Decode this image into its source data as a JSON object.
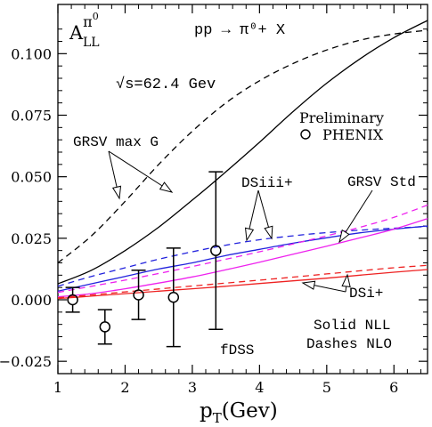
{
  "chart_data": {
    "type": "line",
    "xlabel_main": "p",
    "xlabel_sub": "T",
    "xlabel_rest": "(Gev)",
    "ylabel_main": "A",
    "ylabel_sub": "LL",
    "ylabel_sup": "π",
    "ylabel_sup2": "0",
    "xlim": [
      1,
      6.5
    ],
    "ylim": [
      -0.03,
      0.12
    ],
    "x_ticks": [
      1,
      2,
      3,
      4,
      5,
      6
    ],
    "x_tick_labels": [
      "1",
      "2",
      "3",
      "4",
      "5",
      "6"
    ],
    "y_ticks": [
      -0.025,
      0,
      0.025,
      0.05,
      0.075,
      0.1
    ],
    "y_tick_labels": [
      "−0.025",
      "0.000",
      "0.025",
      "0.050",
      "0.075",
      "0.100"
    ],
    "grid": false,
    "series": [
      {
        "name": "GRSV max G",
        "order": "NLL",
        "color": "#000000",
        "dash": false,
        "x": [
          1,
          1.5,
          2,
          2.5,
          3,
          3.5,
          4,
          4.5,
          5,
          5.5,
          6,
          6.5
        ],
        "y": [
          0.0065,
          0.012,
          0.02,
          0.0295,
          0.0405,
          0.052,
          0.064,
          0.0765,
          0.088,
          0.098,
          0.1065,
          0.1135
        ]
      },
      {
        "name": "GRSV max G",
        "order": "NLO",
        "color": "#000000",
        "dash": true,
        "x": [
          1,
          1.5,
          2,
          2.5,
          3,
          3.5,
          4,
          4.5,
          5,
          5.5,
          6,
          6.5
        ],
        "y": [
          0.015,
          0.026,
          0.04,
          0.055,
          0.0685,
          0.08,
          0.089,
          0.096,
          0.1015,
          0.1055,
          0.108,
          0.1095
        ]
      },
      {
        "name": "DSiii+",
        "order": "NLL",
        "color": "#2222dd",
        "dash": false,
        "x": [
          1,
          1.5,
          2,
          2.5,
          3,
          3.5,
          4,
          4.5,
          5,
          5.5,
          6,
          6.5
        ],
        "y": [
          0.0035,
          0.0065,
          0.0095,
          0.0125,
          0.015,
          0.018,
          0.0205,
          0.023,
          0.0252,
          0.0272,
          0.0287,
          0.03
        ]
      },
      {
        "name": "DSiii+",
        "order": "NLO",
        "color": "#2222dd",
        "dash": true,
        "x": [
          1,
          1.5,
          2,
          2.5,
          3,
          3.5,
          4,
          4.5,
          5,
          5.5,
          6,
          6.5
        ],
        "y": [
          0.0055,
          0.0095,
          0.013,
          0.0165,
          0.0195,
          0.0222,
          0.0244,
          0.026,
          0.0273,
          0.0283,
          0.0291,
          0.0298
        ]
      },
      {
        "name": "GRSV Std",
        "order": "NLL",
        "color": "#ee22ee",
        "dash": false,
        "x": [
          1,
          1.5,
          2,
          2.5,
          3,
          3.5,
          4,
          4.5,
          5,
          5.5,
          6,
          6.5
        ],
        "y": [
          0.0012,
          0.0025,
          0.0045,
          0.0068,
          0.0093,
          0.0122,
          0.0153,
          0.0185,
          0.0218,
          0.0252,
          0.0287,
          0.033
        ]
      },
      {
        "name": "GRSV Std",
        "order": "NLO",
        "color": "#ee22ee",
        "dash": true,
        "x": [
          1,
          1.5,
          2,
          2.5,
          3,
          3.5,
          4,
          4.5,
          5,
          5.5,
          6,
          6.5
        ],
        "y": [
          0.003,
          0.0055,
          0.008,
          0.0107,
          0.0135,
          0.0165,
          0.0195,
          0.0227,
          0.026,
          0.0295,
          0.0335,
          0.0385
        ]
      },
      {
        "name": "DSi+",
        "order": "NLL",
        "color": "#ee2222",
        "dash": false,
        "x": [
          1,
          1.5,
          2,
          2.5,
          3,
          3.5,
          4,
          4.5,
          5,
          5.5,
          6,
          6.5
        ],
        "y": [
          0.0005,
          0.0015,
          0.0025,
          0.0035,
          0.0045,
          0.0055,
          0.0066,
          0.0077,
          0.0088,
          0.01,
          0.0112,
          0.0123
        ]
      },
      {
        "name": "DSi+",
        "order": "NLO",
        "color": "#ee2222",
        "dash": true,
        "x": [
          1,
          1.5,
          2,
          2.5,
          3,
          3.5,
          4,
          4.5,
          5,
          5.5,
          6,
          6.5
        ],
        "y": [
          0.0008,
          0.002,
          0.0032,
          0.0044,
          0.0056,
          0.0068,
          0.008,
          0.0092,
          0.0105,
          0.0118,
          0.013,
          0.014
        ]
      }
    ],
    "data_points": {
      "name": "PHENIX",
      "marker": "open-circle",
      "points": [
        {
          "x": 1.22,
          "y": 0.0,
          "err": 0.005
        },
        {
          "x": 1.7,
          "y": -0.011,
          "err": 0.007
        },
        {
          "x": 2.2,
          "y": 0.002,
          "err": 0.01
        },
        {
          "x": 2.72,
          "y": 0.001,
          "err": 0.02
        },
        {
          "x": 3.35,
          "y": 0.02,
          "err": 0.032
        }
      ]
    },
    "annotations": {
      "process": "pp → π⁰+ X",
      "sqrt_s": "√s=62.4 Gev",
      "preliminary": "Preliminary",
      "phenix_label": "PHENIX",
      "label_grsv_maxg": "GRSV max G",
      "label_dsiii": "DSiii+",
      "label_grsv_std": "GRSV Std",
      "label_dsi": "DSi+",
      "legend_solid": "Solid NLL",
      "legend_dashes": "Dashes NLO",
      "fdss": "fDSS"
    }
  }
}
